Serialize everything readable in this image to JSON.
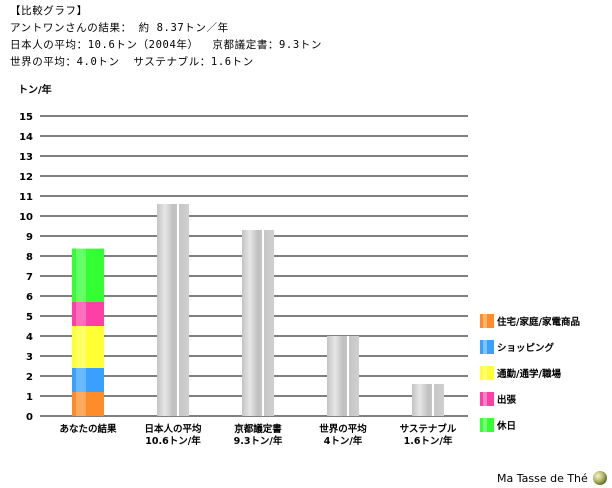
{
  "header": {
    "line1": "【比較グラフ】",
    "line2": "アントワンさんの結果： 約 8.37トン／年",
    "line3": "日本人の平均：10.6トン（2004年）  京都議定書：9.3トン",
    "line4": "世界の平均：4.0トン  サステナブル：1.6トン"
  },
  "footer": {
    "label": "Ma Tasse de Thé",
    "icon": "globe-icon"
  },
  "chart_data": {
    "type": "bar",
    "ylabel": "トン/年",
    "ylim": [
      0,
      15
    ],
    "ticks": [
      0,
      1,
      2,
      3,
      4,
      5,
      6,
      7,
      8,
      9,
      10,
      11,
      12,
      13,
      14,
      15
    ],
    "grid": true,
    "categories": [
      [
        "あなたの結果"
      ],
      [
        "日本人の平均",
        "10.6トン/年"
      ],
      [
        "京都議定書",
        "9.3トン/年"
      ],
      [
        "世界の平均",
        "4トン/年"
      ],
      [
        "サステナブル",
        "1.6トン/年"
      ]
    ],
    "stacked_series": [
      {
        "name": "住宅/家庭/家電商品",
        "color": "#ff8c2a",
        "values": [
          1.2,
          0,
          0,
          0,
          0
        ]
      },
      {
        "name": "ショッピング",
        "color": "#3aa0ff",
        "values": [
          1.2,
          0,
          0,
          0,
          0
        ]
      },
      {
        "name": "通勤/通学/職場",
        "color": "#ffff33",
        "values": [
          2.1,
          0,
          0,
          0,
          0
        ]
      },
      {
        "name": "出張",
        "color": "#ff3fa8",
        "values": [
          1.2,
          0,
          0,
          0,
          0
        ]
      },
      {
        "name": "休日",
        "color": "#33ff33",
        "values": [
          2.67,
          0,
          0,
          0,
          0
        ]
      }
    ],
    "reference_values": [
      null,
      10.6,
      9.3,
      4.0,
      1.6
    ],
    "reference_color": "#cccccc",
    "legend_position": "right"
  }
}
